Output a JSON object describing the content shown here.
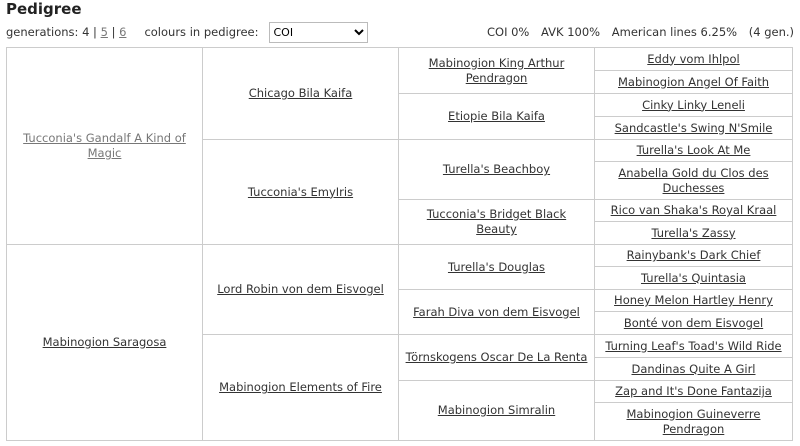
{
  "title": "Pedigree",
  "generations": {
    "label": "generations:",
    "current": "4",
    "options": [
      "5",
      "6"
    ]
  },
  "colours": {
    "label": "colours in pedigree:",
    "selected": "COI"
  },
  "stats": {
    "coi": "COI 0%",
    "avk": "AVK 100%",
    "american": "American lines 6.25%",
    "gen": "(4 gen.)"
  },
  "pedigree": {
    "g1": [
      "Tucconia's Gandalf A Kind of Magic",
      "Mabinogion Saragosa"
    ],
    "g2": [
      "Chicago Bila Kaifa",
      "Tucconia's EmyIris",
      "Lord Robin von dem Eisvogel",
      "Mabinogion Elements of Fire"
    ],
    "g3": [
      "Mabinogion King Arthur Pendragon",
      "Etiopie Bila Kaifa",
      "Turella's Beachboy",
      "Tucconia's Bridget Black Beauty",
      "Turella's Douglas",
      "Farah Diva von dem Eisvogel",
      "Törnskogens Oscar De La Renta",
      "Mabinogion Simralin"
    ],
    "g4": [
      "Eddy vom Ihlpol",
      "Mabinogion Angel Of Faith",
      "Cinky Linky Leneli",
      "Sandcastle's Swing N'Smile",
      "Turella's Look At Me",
      "Anabella Gold du Clos des Duchesses",
      "Rico van Shaka's Royal Kraal",
      "Turella's Zassy",
      "Rainybank's Dark Chief",
      "Turella's Quintasia",
      "Honey Melon Hartley Henry",
      "Bonté von dem Eisvogel",
      "Turning Leaf's Toad's Wild Ride",
      "Dandinas Quite A Girl",
      "Zap and It's Done Fantazija",
      "Mabinogion Guineverre Pendragon"
    ]
  }
}
